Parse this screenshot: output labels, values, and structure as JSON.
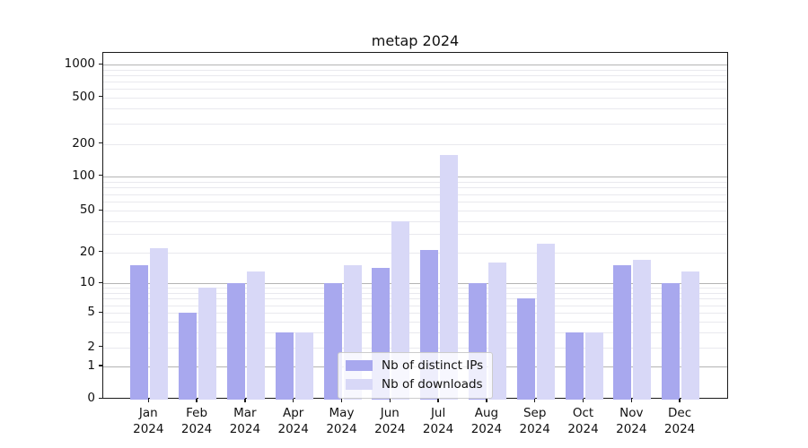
{
  "chart_data": {
    "type": "bar",
    "title": "metap 2024",
    "categories": [
      "Jan",
      "Feb",
      "Mar",
      "Apr",
      "May",
      "Jun",
      "Jul",
      "Aug",
      "Sep",
      "Oct",
      "Nov",
      "Dec"
    ],
    "category_year": "2024",
    "series": [
      {
        "name": "Nb of distinct IPs",
        "color": "#a8a8ee",
        "values": [
          15,
          5,
          10,
          3,
          10,
          14,
          21,
          10,
          7,
          3,
          15,
          10
        ]
      },
      {
        "name": "Nb of downloads",
        "color": "#d8d8f7",
        "values": [
          22,
          9,
          13,
          3,
          15,
          40,
          158,
          16,
          24,
          3,
          17,
          13
        ]
      }
    ],
    "yticks": [
      0,
      1,
      2,
      5,
      10,
      20,
      50,
      100,
      200,
      500,
      1000
    ],
    "yscale": "symlog",
    "ylim": [
      0,
      1200
    ],
    "xlabel": "",
    "ylabel": "",
    "grid": "on",
    "grid_major_color": "#b4b4b4",
    "grid_minor_color": "#e9e9ee",
    "legend_position": "lower-center-inside"
  }
}
